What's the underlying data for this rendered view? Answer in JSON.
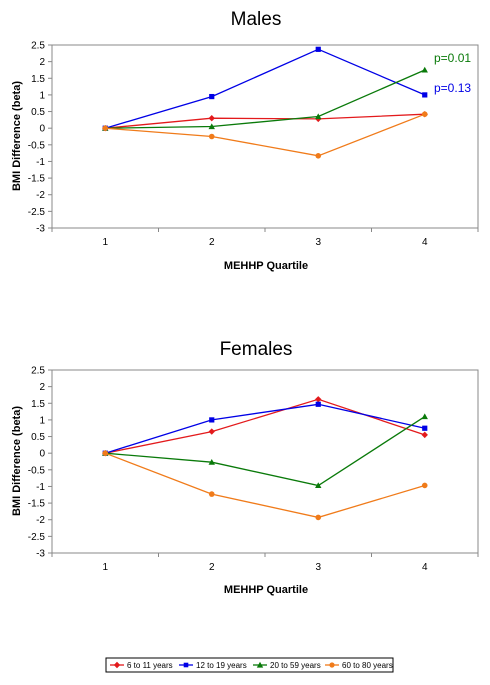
{
  "series_colors": [
    "#e31a1c",
    "#0000e6",
    "#0a7a0a",
    "#f07b1a"
  ],
  "legend": {
    "items": [
      "6 to 11 years",
      "12 to 19 years",
      "20 to 59 years",
      "60 to 80 years"
    ]
  },
  "chart_data": [
    {
      "type": "line",
      "title": "Males",
      "xlabel": "MEHHP Quartile",
      "ylabel": "BMI Difference (beta)",
      "x": [
        1,
        2,
        3,
        4
      ],
      "ylim": [
        -3,
        2.5
      ],
      "yticks": [
        "2.5",
        "2",
        "1.5",
        "1",
        "0.5",
        "0",
        "-0.5",
        "-1",
        "-1.5",
        "-2",
        "-2.5",
        "-3"
      ],
      "series": [
        {
          "name": "6 to 11 years",
          "values": [
            0,
            0.3,
            0.28,
            0.42
          ]
        },
        {
          "name": "12 to 19 years",
          "values": [
            0,
            0.95,
            2.37,
            1.0
          ]
        },
        {
          "name": "20 to 59 years",
          "values": [
            0,
            0.05,
            0.35,
            1.75
          ]
        },
        {
          "name": "60 to 80 years",
          "values": [
            0,
            -0.25,
            -0.83,
            0.42
          ]
        }
      ],
      "annotations": [
        {
          "text": "p=0.01",
          "series": 2
        },
        {
          "text": "p=0.13",
          "series": 1
        }
      ]
    },
    {
      "type": "line",
      "title": "Females",
      "xlabel": "MEHHP Quartile",
      "ylabel": "BMI Difference (beta)",
      "x": [
        1,
        2,
        3,
        4
      ],
      "ylim": [
        -3,
        2.5
      ],
      "yticks": [
        "2.5",
        "2",
        "1.5",
        "1",
        "0.5",
        "0",
        "-0.5",
        "-1",
        "-1.5",
        "-2",
        "-2.5",
        "-3"
      ],
      "series": [
        {
          "name": "6 to 11 years",
          "values": [
            0,
            0.65,
            1.62,
            0.55
          ]
        },
        {
          "name": "12 to 19 years",
          "values": [
            0,
            1.0,
            1.47,
            0.75
          ]
        },
        {
          "name": "20 to 59 years",
          "values": [
            0,
            -0.27,
            -0.97,
            1.1
          ]
        },
        {
          "name": "60 to 80 years",
          "values": [
            0,
            -1.23,
            -1.93,
            -0.97
          ]
        }
      ],
      "annotations": []
    }
  ]
}
